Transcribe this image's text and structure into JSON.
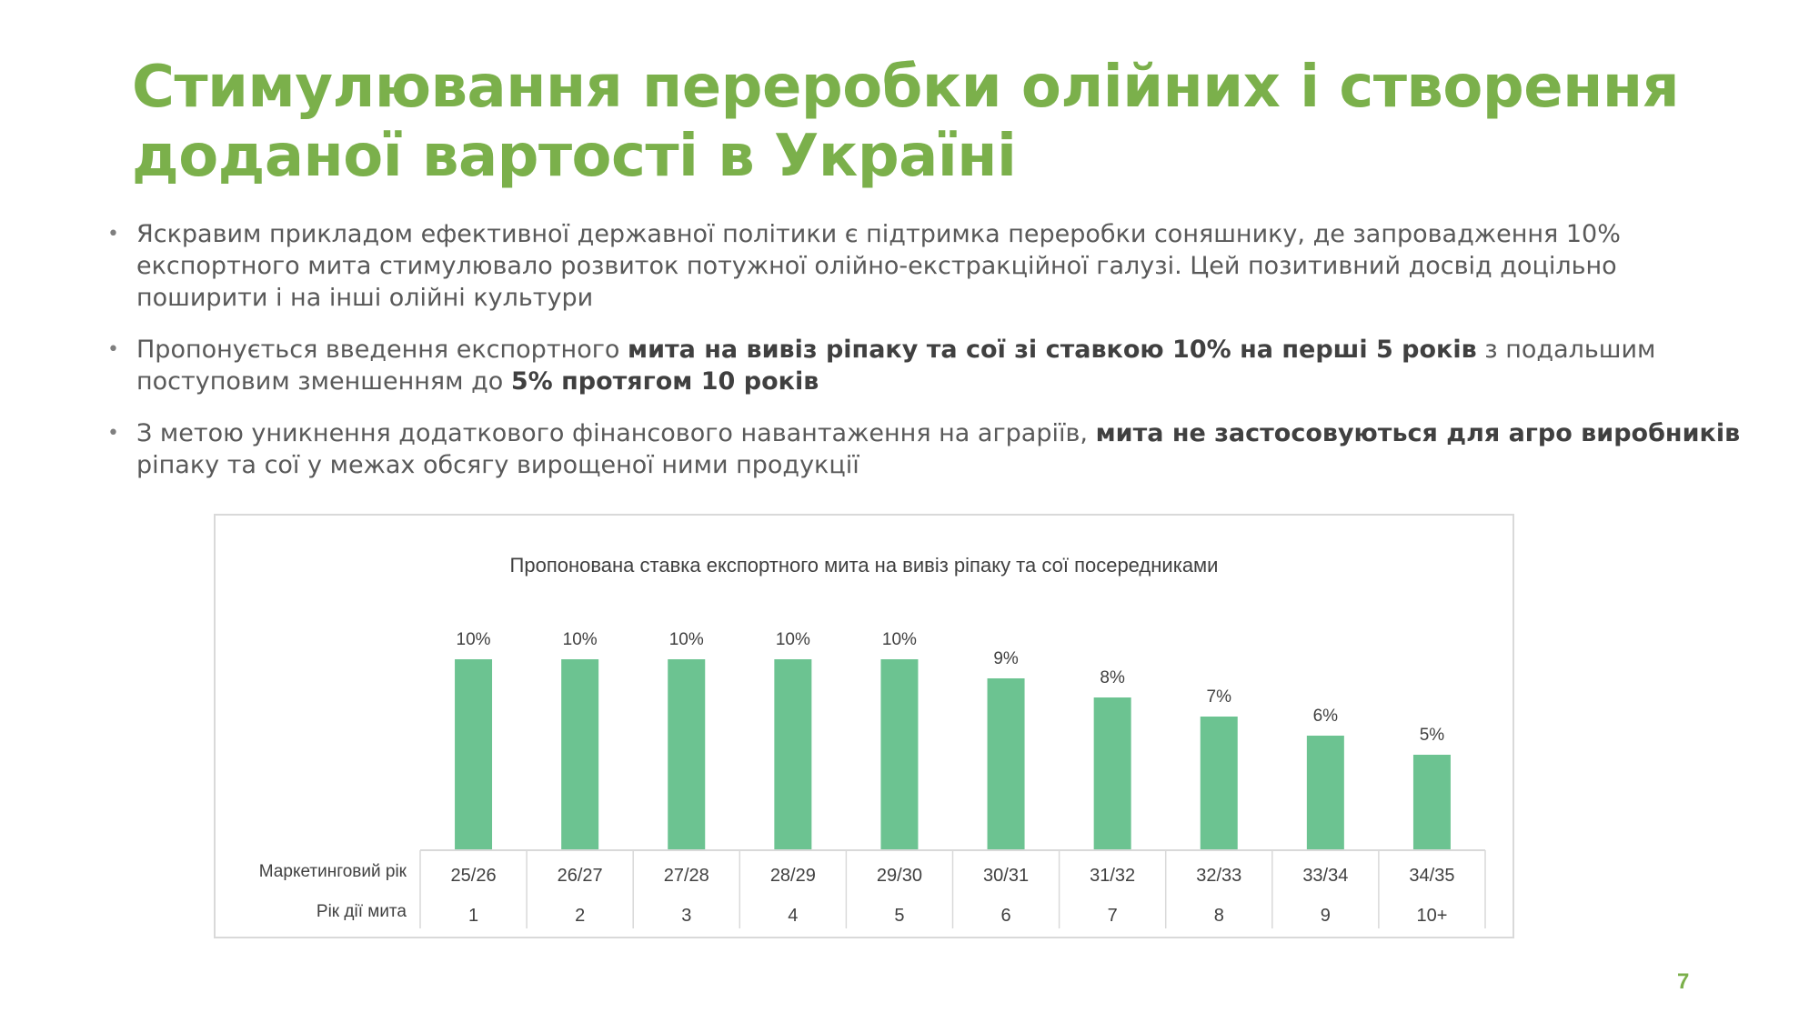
{
  "title": "Стимулювання переробки олійних і створення доданої вартості в Україні",
  "bullets": [
    {
      "segments": [
        {
          "text": "Яскравим прикладом ефективної державної політики є підтримка переробки соняшнику, де запровадження 10% експортного мита стимулювало розвиток потужної олійно-екстракційної галузі. Цей позитивний досвід доцільно поширити і на інші олійні культури",
          "bold": false
        }
      ]
    },
    {
      "segments": [
        {
          "text": "Пропонується введення експортного ",
          "bold": false
        },
        {
          "text": "мита на вивіз ріпаку та сої зі ставкою 10% на перші 5 років",
          "bold": true
        },
        {
          "text": " з подальшим поступовим зменшенням до ",
          "bold": false
        },
        {
          "text": "5% протягом 10 років",
          "bold": true
        }
      ]
    },
    {
      "segments": [
        {
          "text": "З метою уникнення додаткового фінансового навантаження на аграріїв, ",
          "bold": false
        },
        {
          "text": "мита не застосовуються для агро виробників",
          "bold": true
        },
        {
          "text": " ріпаку та сої у межах обсягу вирощеної ними продукції",
          "bold": false
        }
      ]
    }
  ],
  "chart_data": {
    "type": "bar",
    "title": "Пропонована ставка експортного мита на вивіз ріпаку та сої посередниками",
    "categories": [
      "25/26",
      "26/27",
      "27/28",
      "28/29",
      "29/30",
      "30/31",
      "31/32",
      "32/33",
      "33/34",
      "34/35"
    ],
    "secondary_categories": [
      "1",
      "2",
      "3",
      "4",
      "5",
      "6",
      "7",
      "8",
      "9",
      "10+"
    ],
    "category_row_labels": [
      "Маркетинговий рік",
      "Рік дії мита"
    ],
    "values": [
      10,
      10,
      10,
      10,
      10,
      9,
      8,
      7,
      6,
      5
    ],
    "value_labels": [
      "10%",
      "10%",
      "10%",
      "10%",
      "10%",
      "9%",
      "8%",
      "7%",
      "6%",
      "5%"
    ],
    "ylim": [
      0,
      10
    ],
    "grid": false,
    "bar_color": "#6cc391"
  },
  "page_number": "7",
  "colors": {
    "accent": "#7bb04b",
    "text": "#595959"
  }
}
